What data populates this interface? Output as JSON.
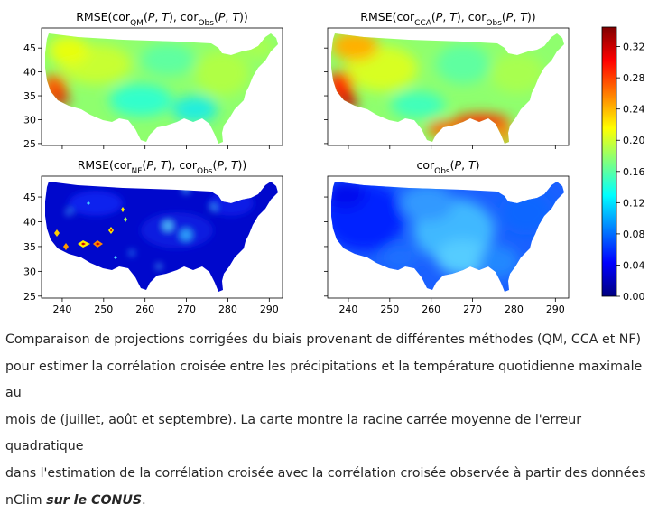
{
  "chart_data": [
    {
      "type": "heatmap",
      "title_parts": [
        "RMSE(cor",
        "QM",
        "(",
        "P",
        ", ",
        "T",
        "), cor",
        "Obs",
        "(",
        "P",
        ", ",
        "T",
        "))"
      ],
      "ylabel_ticks": [
        "45",
        "40",
        "35",
        "30",
        "25"
      ],
      "xlabel_ticks": [],
      "regions": [
        {
          "name": "base",
          "value": 0.16
        },
        {
          "name": "southwest-coast",
          "value": 0.3
        },
        {
          "name": "northwest",
          "value": 0.2
        },
        {
          "name": "east",
          "value": 0.17
        }
      ]
    },
    {
      "type": "heatmap",
      "title_parts": [
        "RMSE(cor",
        "CCA",
        "(",
        "P",
        ", ",
        "T",
        "), cor",
        "Obs",
        "(",
        "P",
        ", ",
        "T",
        "))"
      ],
      "ylabel_ticks": [],
      "xlabel_ticks": [],
      "regions": [
        {
          "name": "base",
          "value": 0.17
        },
        {
          "name": "southwest-coast",
          "value": 0.32
        },
        {
          "name": "northwest",
          "value": 0.26
        },
        {
          "name": "gulf-coast",
          "value": 0.29
        }
      ]
    },
    {
      "type": "heatmap",
      "title_parts": [
        "RMSE(cor",
        "NF",
        "(",
        "P",
        ", ",
        "T",
        "), cor",
        "Obs",
        "(",
        "P",
        ", ",
        "T",
        "))"
      ],
      "ylabel_ticks": [
        "45",
        "40",
        "35",
        "30",
        "25"
      ],
      "xlabel_ticks": [
        "240",
        "250",
        "260",
        "270",
        "280",
        "290"
      ],
      "regions": [
        {
          "name": "base",
          "value": 0.02
        },
        {
          "name": "southwest-hotspots",
          "value": 0.3
        }
      ]
    },
    {
      "type": "heatmap",
      "title_parts": [
        "cor",
        "Obs",
        "(",
        "P",
        ", ",
        "T",
        ")"
      ],
      "ylabel_ticks": [],
      "xlabel_ticks": [
        "240",
        "250",
        "260",
        "270",
        "280",
        "290"
      ],
      "regions": [
        {
          "name": "west",
          "value": 0.03
        },
        {
          "name": "central",
          "value": 0.1
        },
        {
          "name": "east",
          "value": 0.06
        }
      ]
    }
  ],
  "colorbar": {
    "ticks": [
      "0.32",
      "0.28",
      "0.24",
      "0.20",
      "0.16",
      "0.12",
      "0.08",
      "0.04",
      "0.00"
    ],
    "range": [
      0.0,
      0.345
    ],
    "colormap": "jet",
    "colors": [
      "#00007f",
      "#0000ff",
      "#007fff",
      "#00ffff",
      "#7fff7f",
      "#ffff00",
      "#ff7f00",
      "#ff0000",
      "#7f0000"
    ]
  },
  "caption": {
    "line1": "Comparaison de projections corrigées du biais provenant de différentes méthodes (QM, CCA et NF)",
    "line2": "pour estimer la corrélation croisée entre les précipitations et la température quotidienne maximale au",
    "line3": "mois de (juillet, août et septembre). La carte montre la racine carrée moyenne de l'erreur quadratique",
    "line4": "dans l'estimation de la corrélation croisée avec la corrélation croisée observée à partir des données",
    "line5_prefix": "nClim ",
    "line5_emphasis": "sur le CONUS",
    "line5_suffix": "."
  }
}
